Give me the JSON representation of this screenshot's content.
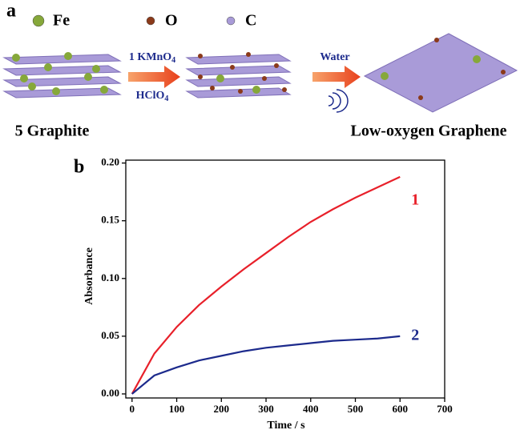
{
  "panel_a": {
    "label": "a",
    "legend": [
      {
        "name": "Fe",
        "color": "#86a83a"
      },
      {
        "name": "O",
        "color": "#8b3a1a"
      },
      {
        "name": "C",
        "color": "#a99bd8"
      }
    ],
    "step1": {
      "top": {
        "text": "1 KMnO",
        "sub": "4"
      },
      "bottom": {
        "text": "HClO",
        "sub": "4"
      }
    },
    "step2": "Water",
    "start_label": "5 Graphite",
    "end_label": "Low-oxygen Graphene"
  },
  "chart_data": {
    "type": "line",
    "panel_label": "b",
    "xlabel": "Time / s",
    "ylabel": "Absorbance",
    "x": [
      0,
      50,
      100,
      150,
      200,
      250,
      300,
      350,
      400,
      450,
      500,
      550,
      600
    ],
    "series": [
      {
        "name": "1",
        "color": "#e8202a",
        "values": [
          0,
          0.035,
          0.058,
          0.077,
          0.093,
          0.108,
          0.122,
          0.136,
          0.149,
          0.16,
          0.17,
          0.179,
          0.188
        ]
      },
      {
        "name": "2",
        "color": "#1c2a8c",
        "values": [
          0,
          0.016,
          0.023,
          0.029,
          0.033,
          0.037,
          0.04,
          0.042,
          0.044,
          0.046,
          0.047,
          0.048,
          0.05
        ]
      }
    ],
    "xlim": [
      -14,
      700
    ],
    "ylim": [
      -0.0035,
      0.2025
    ],
    "xticks": [
      0,
      100,
      200,
      300,
      400,
      500,
      600,
      700
    ],
    "yticks": [
      {
        "value": 0,
        "label": "0.00"
      },
      {
        "value": 0.05,
        "label": "0.05"
      },
      {
        "value": 0.1,
        "label": "0.10"
      },
      {
        "value": 0.15,
        "label": "0.15"
      },
      {
        "value": 0.2,
        "label": "0.20"
      }
    ]
  }
}
